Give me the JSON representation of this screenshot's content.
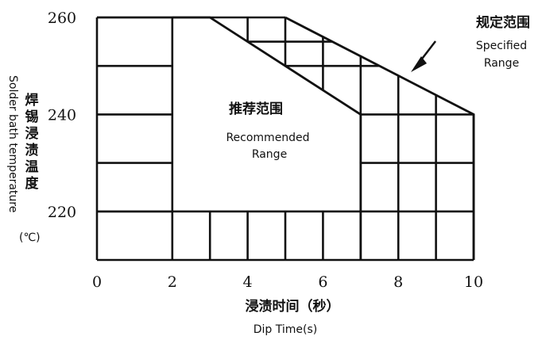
{
  "chart_data": {
    "type": "area",
    "xlabel_zh": "浸渍时间（秒）",
    "xlabel_en": "Dip Time(s)",
    "ylabel_zh": [
      "焊",
      "锡",
      "浸",
      "渍",
      "温",
      "度"
    ],
    "ylabel_en": "Solder bath temperature",
    "ylabel_unit": "(℃)",
    "x_ticks": [
      "0",
      "2",
      "4",
      "6",
      "8",
      "10"
    ],
    "y_ticks": [
      "220",
      "240",
      "260"
    ],
    "xlim": [
      0,
      10
    ],
    "ylim": [
      210,
      260
    ],
    "grid": true,
    "series": [
      {
        "name": "推荐范围 Recommended Range",
        "label_zh": "推荐范围",
        "label_en_lines": [
          "Recommended",
          "Range"
        ],
        "points": [
          [
            2,
            210
          ],
          [
            2,
            260
          ],
          [
            3,
            260
          ],
          [
            7,
            240
          ],
          [
            7,
            210
          ]
        ]
      },
      {
        "name": "规定范围 Specified Range",
        "label_zh": "规定范围",
        "label_en_lines": [
          "Specified",
          "Range"
        ],
        "points": [
          [
            5,
            260
          ],
          [
            10,
            240
          ],
          [
            10,
            210
          ]
        ]
      }
    ]
  }
}
